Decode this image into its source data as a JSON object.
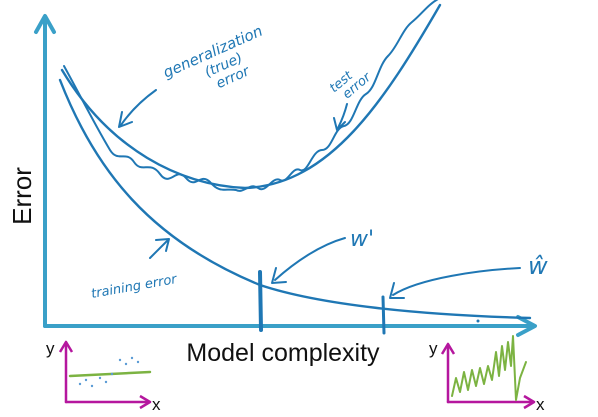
{
  "colors": {
    "ink": "#1f77b4",
    "axis": "#3aa0c8",
    "inset_axis": "#b5179e",
    "inset_curve": "#7cb342",
    "text": "#111111"
  },
  "axes": {
    "x_label": "Model complexity",
    "y_label": "Error"
  },
  "annotations": {
    "generalization_line1": "generalization",
    "generalization_line2": "(true)",
    "generalization_line3": "error",
    "test_line1": "test",
    "test_line2": "error",
    "training": "training error",
    "w_prime": "w'",
    "w_hat": "ŵ"
  },
  "insets": {
    "left": {
      "y_label": "y",
      "x_label": "x"
    },
    "right": {
      "y_label": "y",
      "x_label": "x"
    }
  }
}
